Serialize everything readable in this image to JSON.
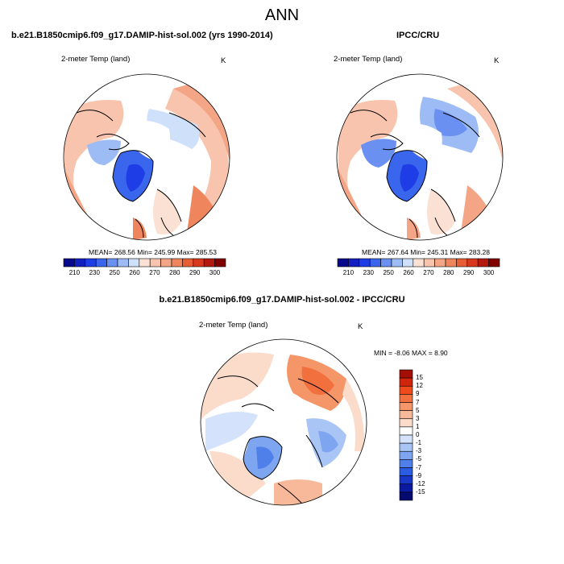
{
  "title": "ANN",
  "panel_left": {
    "title": "b.e21.B1850cmip6.f09_g17.DAMIP-hist-sol.002 (yrs 1990-2014)",
    "variable": "2-meter Temp (land)",
    "units": "K",
    "stats": "MEAN= 268.56  Min= 245.99  Max= 285.53"
  },
  "panel_right": {
    "title": "IPCC/CRU",
    "variable": "2-meter Temp (land)",
    "units": "K",
    "stats": "MEAN= 267.64  Min= 245.31  Max= 283.28"
  },
  "panel_diff": {
    "title": "b.e21.B1850cmip6.f09_g17.DAMIP-hist-sol.002 - IPCC/CRU",
    "variable": "2-meter Temp (land)",
    "units": "K",
    "stats": "MIN =  -8.06 MAX =   8.90"
  },
  "colorbar_abs": {
    "labels": [
      "210",
      "230",
      "250",
      "260",
      "270",
      "280",
      "290",
      "300"
    ],
    "colors": [
      "#08088c",
      "#1320c0",
      "#1e3de6",
      "#3a66ee",
      "#6a90f2",
      "#9dbcf5",
      "#cfe0fa",
      "#fbe1d4",
      "#f8c4ad",
      "#f4a585",
      "#ef855c",
      "#e85e34",
      "#d8381b",
      "#b21a0d",
      "#800000"
    ]
  },
  "colorbar_diff": {
    "labels": [
      "15",
      "12",
      "9",
      "7",
      "5",
      "3",
      "1",
      "0",
      "-1",
      "-3",
      "-5",
      "-7",
      "-9",
      "-12",
      "-15"
    ],
    "colors": [
      "#a50f06",
      "#d2260c",
      "#ee4a1c",
      "#f26f3e",
      "#f59669",
      "#f8b99a",
      "#fbdccb",
      "#ffffff",
      "#d4e3fb",
      "#a9c5f6",
      "#7ea6f0",
      "#4f80ea",
      "#2a5de3",
      "#1837c7",
      "#0b1aa0",
      "#050a6e"
    ]
  }
}
